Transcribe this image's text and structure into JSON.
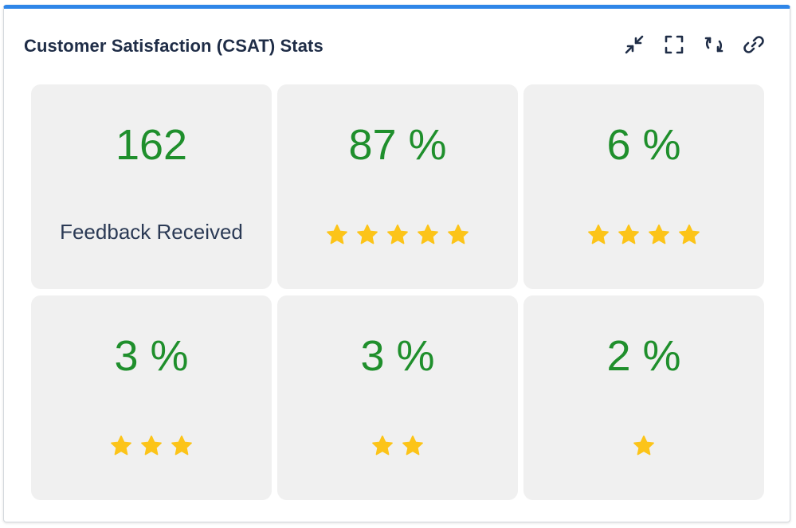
{
  "widget": {
    "title": "Customer Satisfaction (CSAT) Stats",
    "accent_color": "#2f86e8",
    "toolbar": [
      {
        "icon": "collapse-icon",
        "name": "collapse-button"
      },
      {
        "icon": "fullscreen-icon",
        "name": "fullscreen-button"
      },
      {
        "icon": "refresh-icon",
        "name": "refresh-button"
      },
      {
        "icon": "link-icon",
        "name": "link-button"
      }
    ]
  },
  "stats": [
    {
      "value": "162",
      "label": "Feedback Received"
    },
    {
      "value": "87 %",
      "stars": 5
    },
    {
      "value": "6 %",
      "stars": 4
    },
    {
      "value": "3 %",
      "stars": 3
    },
    {
      "value": "3 %",
      "stars": 2
    },
    {
      "value": "2 %",
      "stars": 1
    }
  ],
  "colors": {
    "value_text": "#1f8f2c",
    "star": "#fcc419",
    "card_bg": "#f0f0f0"
  }
}
